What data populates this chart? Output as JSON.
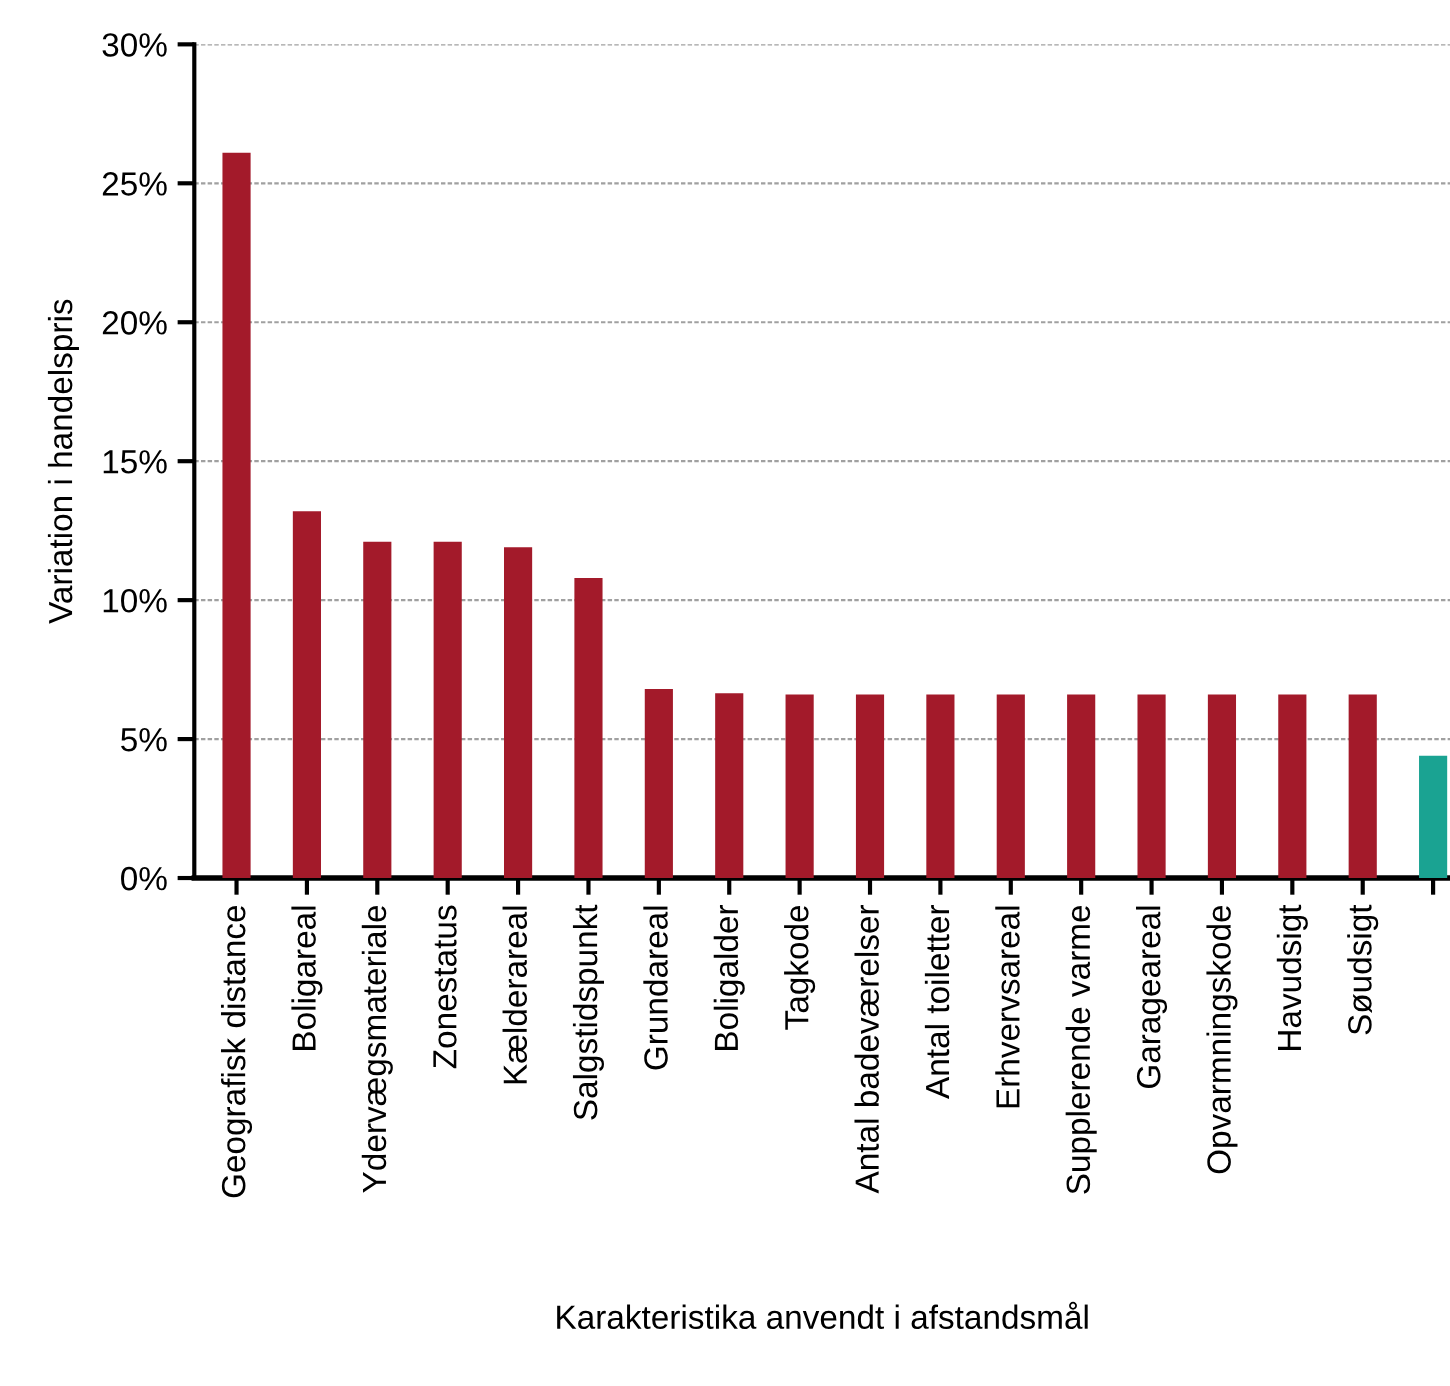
{
  "chart_data": {
    "type": "bar",
    "xlabel": "Karakteristika anvendt i afstandsmål",
    "ylabel": "Variation i handelspris",
    "categories": [
      "Geografisk distance",
      "Boligareal",
      "Ydervægsmateriale",
      "Zonestatus",
      "Kælderareal",
      "Salgstidspunkt",
      "Grundareal",
      "Boligalder",
      "Tagkode",
      "Antal badeværelser",
      "Antal toiletter",
      "Erhvervsareal",
      "Supplerende varme",
      "Garageareal",
      "Opvarmningskode",
      "Havudsigt",
      "Søudsigt",
      null
    ],
    "values": [
      26.1,
      13.2,
      12.1,
      12.1,
      11.9,
      10.8,
      6.8,
      6.65,
      6.6,
      6.6,
      6.6,
      6.6,
      6.6,
      6.6,
      6.6,
      6.6,
      6.6,
      4.4
    ],
    "colors": [
      "#a31a2a",
      "#a31a2a",
      "#a31a2a",
      "#a31a2a",
      "#a31a2a",
      "#a31a2a",
      "#a31a2a",
      "#a31a2a",
      "#a31a2a",
      "#a31a2a",
      "#a31a2a",
      "#a31a2a",
      "#a31a2a",
      "#a31a2a",
      "#a31a2a",
      "#a31a2a",
      "#a31a2a",
      "#1aa392"
    ],
    "ylim": [
      0,
      30
    ],
    "yticks": [
      {
        "value": 0,
        "label": "0%"
      },
      {
        "value": 5,
        "label": "5%"
      },
      {
        "value": 10,
        "label": "10%"
      },
      {
        "value": 15,
        "label": "15%"
      },
      {
        "value": 20,
        "label": "20%"
      },
      {
        "value": 25,
        "label": "25%"
      },
      {
        "value": 30,
        "label": "30%"
      }
    ],
    "grid": "y",
    "legend": false
  }
}
